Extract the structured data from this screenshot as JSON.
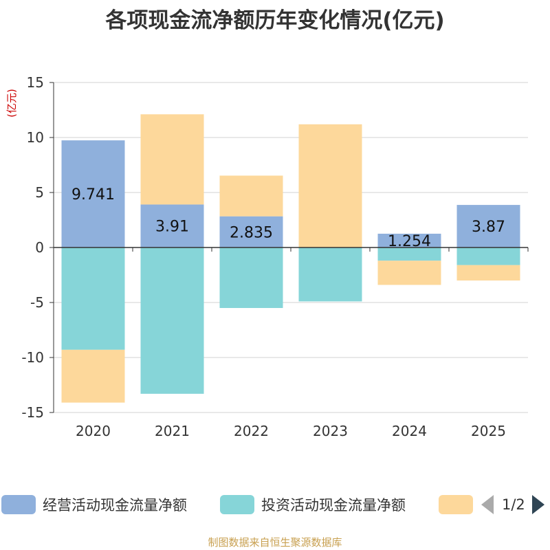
{
  "chart_data": {
    "type": "bar",
    "stacked": true,
    "title": "各项现金流净额历年变化情况(亿元)",
    "ylabel": "(亿元)",
    "xlabel": "",
    "ylim": [
      -15,
      15
    ],
    "yticks": [
      "15",
      "10",
      "5",
      "0",
      "-5",
      "-10",
      "-15"
    ],
    "categories": [
      "2020",
      "2021",
      "2022",
      "2023",
      "2024",
      "2025"
    ],
    "series": [
      {
        "name": "经营活动现金流量净额",
        "color": "#8fb0dc",
        "values": [
          9.741,
          3.91,
          2.835,
          0,
          1.254,
          3.87
        ],
        "labels": [
          "9.741",
          "3.91",
          "2.835",
          "",
          "1.254",
          "3.87"
        ]
      },
      {
        "name": "投资活动现金流量净额",
        "color": "#86d5d8",
        "values": [
          -9.3,
          -13.3,
          -5.5,
          -4.9,
          -1.2,
          -1.6
        ]
      },
      {
        "name": "",
        "color": "#fdd89b",
        "values": [
          -4.8,
          8.2,
          3.7,
          11.2,
          -2.2,
          -1.4
        ]
      }
    ],
    "legend_position": "bottom",
    "grid": true
  },
  "legend": {
    "page": "1/2"
  },
  "footer": {
    "source": "制图数据来自恒生聚源数据库"
  }
}
